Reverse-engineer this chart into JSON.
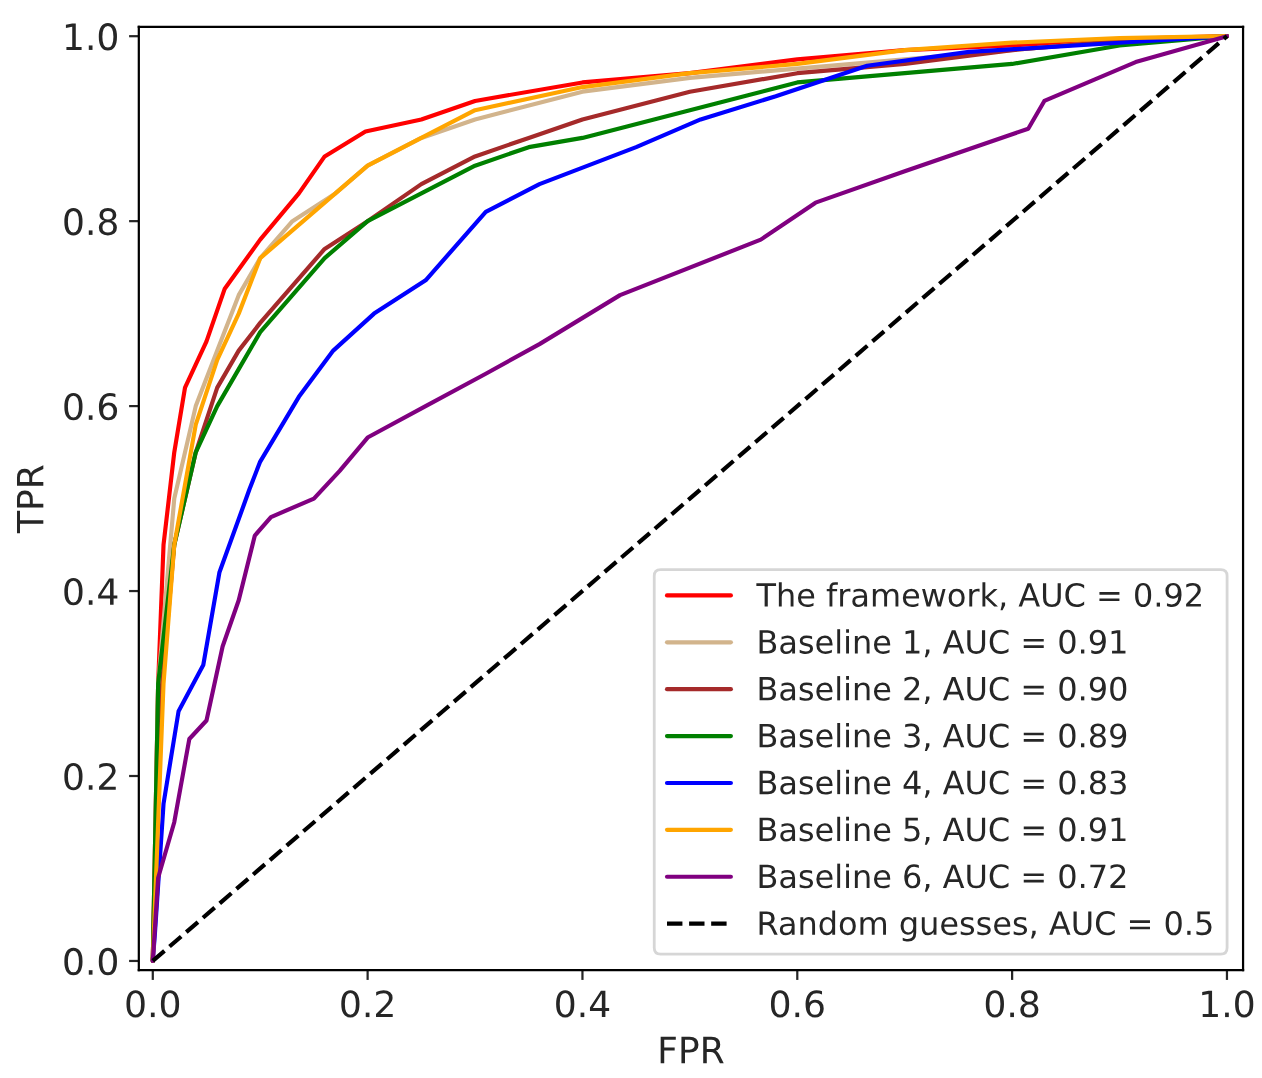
{
  "chart_data": {
    "type": "line",
    "xlabel": "FPR",
    "ylabel": "TPR",
    "xlim": [
      -0.013,
      1.015
    ],
    "ylim": [
      -0.01,
      1.01
    ],
    "xticks": [
      {
        "value": 0,
        "label": "0.0"
      },
      {
        "value": 0.2,
        "label": "0.2"
      },
      {
        "value": 0.4,
        "label": "0.4"
      },
      {
        "value": 0.6,
        "label": "0.6"
      },
      {
        "value": 0.8,
        "label": "0.8"
      },
      {
        "value": 1,
        "label": "1.0"
      }
    ],
    "yticks": [
      {
        "value": 0,
        "label": "0.0"
      },
      {
        "value": 0.2,
        "label": "0.2"
      },
      {
        "value": 0.4,
        "label": "0.4"
      },
      {
        "value": 0.6,
        "label": "0.6"
      },
      {
        "value": 0.8,
        "label": "0.8"
      },
      {
        "value": 1,
        "label": "1.0"
      }
    ],
    "grid": false,
    "legend": "bottom right",
    "line_style": "solid",
    "marker": "none",
    "series": [
      {
        "name": "The framework, AUC = 0.92",
        "color": "#ff0000",
        "x": [
          0,
          0.005,
          0.01,
          0.02,
          0.03,
          0.05,
          0.067,
          0.1,
          0.136,
          0.16,
          0.198,
          0.25,
          0.3,
          0.4,
          0.5,
          0.6,
          0.7,
          0.8,
          0.9,
          1
        ],
        "values": [
          0,
          0.3,
          0.45,
          0.55,
          0.62,
          0.67,
          0.727,
          0.78,
          0.83,
          0.87,
          0.897,
          0.91,
          0.93,
          0.95,
          0.96,
          0.975,
          0.985,
          0.99,
          0.997,
          1
        ]
      },
      {
        "name": "Baseline 1, AUC = 0.91",
        "color": "#d2b48c",
        "x": [
          0,
          0.005,
          0.02,
          0.04,
          0.06,
          0.08,
          0.1,
          0.13,
          0.17,
          0.2,
          0.25,
          0.3,
          0.4,
          0.5,
          0.6,
          0.7,
          0.8,
          0.9,
          1
        ],
        "values": [
          0,
          0.3,
          0.5,
          0.6,
          0.66,
          0.72,
          0.76,
          0.8,
          0.83,
          0.86,
          0.89,
          0.91,
          0.94,
          0.955,
          0.965,
          0.975,
          0.985,
          0.995,
          1
        ]
      },
      {
        "name": "Baseline 2, AUC = 0.90",
        "color": "#a52a2a",
        "x": [
          0,
          0.005,
          0.02,
          0.04,
          0.06,
          0.08,
          0.1,
          0.13,
          0.16,
          0.2,
          0.25,
          0.3,
          0.35,
          0.4,
          0.5,
          0.6,
          0.7,
          0.8,
          0.9,
          1
        ],
        "values": [
          0,
          0.25,
          0.45,
          0.55,
          0.62,
          0.66,
          0.69,
          0.73,
          0.77,
          0.8,
          0.84,
          0.87,
          0.89,
          0.91,
          0.94,
          0.96,
          0.97,
          0.985,
          0.995,
          1
        ]
      },
      {
        "name": "Baseline 3, AUC = 0.89",
        "color": "#008000",
        "x": [
          0,
          0.005,
          0.02,
          0.04,
          0.06,
          0.08,
          0.1,
          0.13,
          0.16,
          0.2,
          0.25,
          0.3,
          0.35,
          0.4,
          0.5,
          0.6,
          0.7,
          0.8,
          0.9,
          1
        ],
        "values": [
          0,
          0.3,
          0.45,
          0.55,
          0.6,
          0.64,
          0.68,
          0.72,
          0.76,
          0.8,
          0.83,
          0.86,
          0.88,
          0.89,
          0.92,
          0.95,
          0.96,
          0.97,
          0.99,
          1
        ]
      },
      {
        "name": "Baseline 4, AUC = 0.83",
        "color": "#0000ff",
        "x": [
          0,
          0.002,
          0.01,
          0.024,
          0.047,
          0.062,
          0.09,
          0.1,
          0.136,
          0.168,
          0.206,
          0.254,
          0.31,
          0.36,
          0.45,
          0.51,
          0.58,
          0.665,
          0.76,
          0.915,
          1
        ],
        "values": [
          0,
          0.03,
          0.17,
          0.27,
          0.32,
          0.42,
          0.51,
          0.54,
          0.61,
          0.66,
          0.7,
          0.736,
          0.81,
          0.84,
          0.88,
          0.91,
          0.935,
          0.968,
          0.983,
          0.994,
          1
        ]
      },
      {
        "name": "Baseline 5, AUC = 0.91",
        "color": "#ffa500",
        "x": [
          0,
          0.005,
          0.01,
          0.02,
          0.04,
          0.06,
          0.08,
          0.1,
          0.12,
          0.15,
          0.2,
          0.25,
          0.3,
          0.4,
          0.5,
          0.6,
          0.7,
          0.8,
          0.9,
          1
        ],
        "values": [
          0,
          0.15,
          0.3,
          0.45,
          0.58,
          0.65,
          0.7,
          0.76,
          0.78,
          0.81,
          0.86,
          0.89,
          0.92,
          0.945,
          0.96,
          0.97,
          0.985,
          0.993,
          0.998,
          1
        ]
      },
      {
        "name": "Baseline 6, AUC = 0.72",
        "color": "#800080",
        "x": [
          0,
          0.005,
          0.02,
          0.034,
          0.05,
          0.065,
          0.08,
          0.095,
          0.11,
          0.15,
          0.174,
          0.2,
          0.254,
          0.31,
          0.36,
          0.435,
          0.566,
          0.617,
          0.7,
          0.815,
          0.83,
          0.915,
          1
        ],
        "values": [
          0,
          0.09,
          0.15,
          0.24,
          0.26,
          0.34,
          0.39,
          0.46,
          0.48,
          0.5,
          0.53,
          0.566,
          0.6,
          0.635,
          0.667,
          0.72,
          0.78,
          0.82,
          0.854,
          0.9,
          0.93,
          0.972,
          1
        ]
      },
      {
        "name": "Random guesses, AUC = 0.5",
        "color": "#000000",
        "line_style": "dashed",
        "x": [
          0,
          1
        ],
        "values": [
          0,
          1
        ]
      }
    ]
  }
}
